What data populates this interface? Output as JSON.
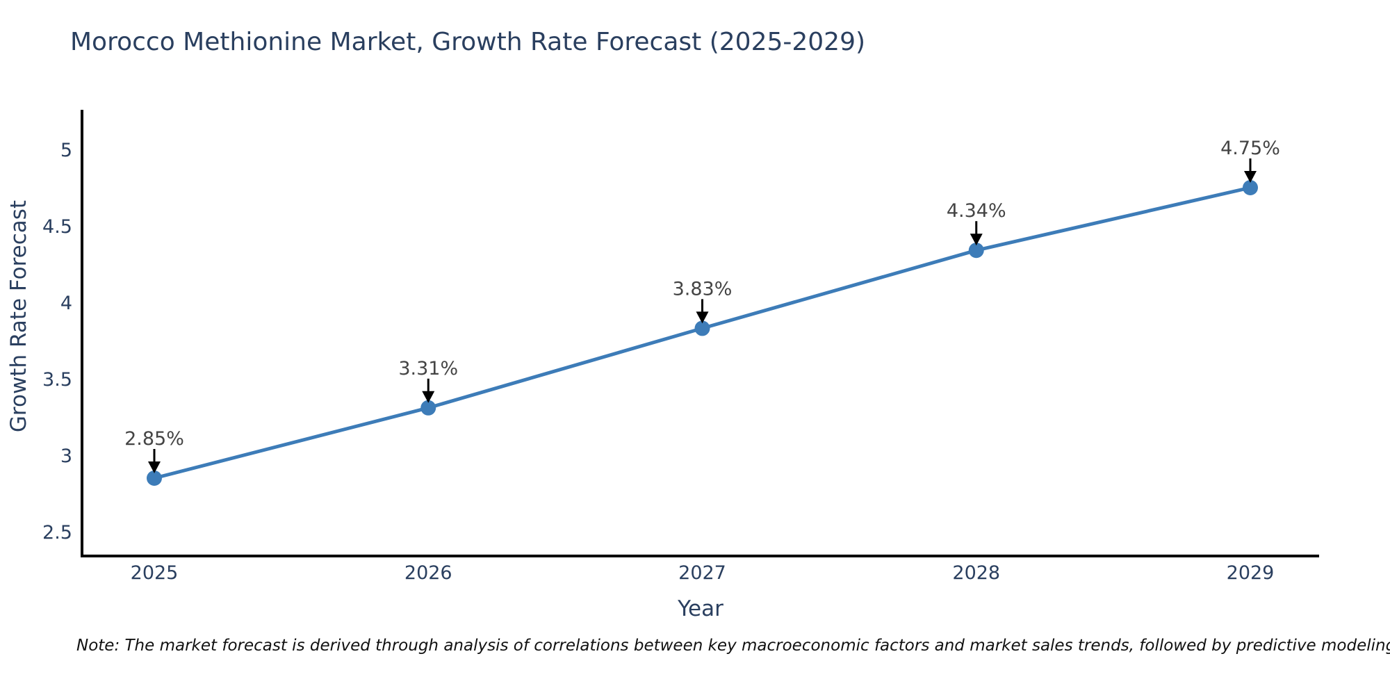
{
  "chart_data": {
    "type": "line",
    "title": "Morocco Methionine Market, Growth Rate Forecast (2025-2029)",
    "xlabel": "Year",
    "ylabel": "Growth Rate Forecast",
    "x": [
      2025,
      2026,
      2027,
      2028,
      2029
    ],
    "series": [
      {
        "name": "Growth Rate Forecast",
        "values": [
          2.85,
          3.31,
          3.83,
          4.34,
          4.75
        ],
        "point_labels": [
          "2.85%",
          "3.31%",
          "3.83%",
          "4.34%",
          "4.75%"
        ]
      }
    ],
    "x_ticks": [
      "2025",
      "2026",
      "2027",
      "2028",
      "2029"
    ],
    "y_ticks": [
      2.5,
      3,
      3.5,
      4,
      4.5,
      5
    ],
    "ylim": [
      2.34,
      5.26
    ],
    "grid": false,
    "legend": false,
    "annotations_have_arrows": true,
    "colors": {
      "line": "#3d7cb8",
      "marker": "#3d7cb8",
      "axis": "#000000",
      "tick_text": "#2a3f5f",
      "annotation_text": "#444444",
      "arrow": "#000000",
      "background": "#ffffff"
    }
  },
  "footnote": "Note: The market forecast is derived through analysis of correlations between key macroeconomic factors and market sales trends, followed by predictive modeling to project future sales"
}
